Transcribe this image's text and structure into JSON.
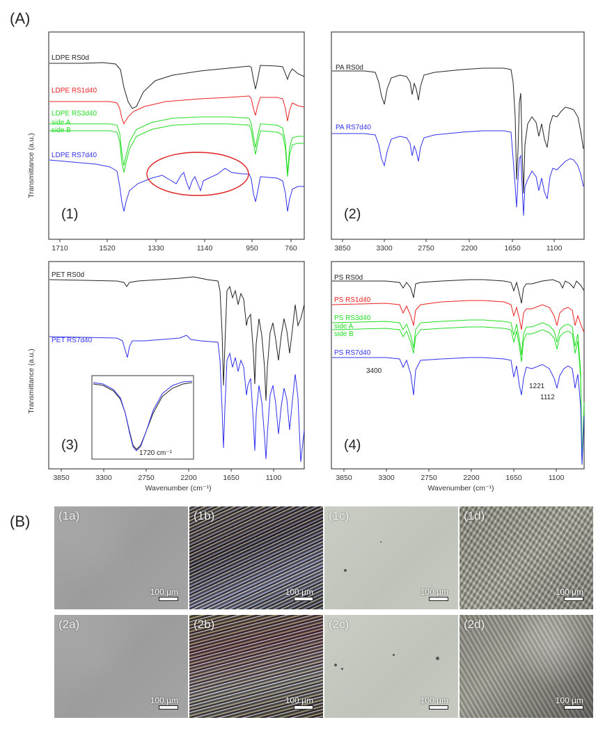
{
  "labels": {
    "A": "(A)",
    "B": "(B)"
  },
  "colors": {
    "black": "#222222",
    "red": "#ee2020",
    "green": "#22dd22",
    "blue": "#3030ee",
    "ellipse": "#e02020"
  },
  "chart_data": [
    {
      "type": "line",
      "panel": "(1)",
      "xlabel": "",
      "ylabel": "Transmittance (a.u.)",
      "xticks": [
        "1710",
        "1520",
        "1330",
        "1140",
        "950",
        "760"
      ],
      "series": [
        {
          "name": "LDPE RS0d",
          "color": "#222222"
        },
        {
          "name": "LDPE RS1d40",
          "color": "#ee2020"
        },
        {
          "name": "LDPE RS3d40",
          "color": "#22dd22",
          "sides": [
            "side A",
            "side B"
          ]
        },
        {
          "name": "LDPE RS7d40",
          "color": "#3030ee"
        }
      ],
      "annotation": "ellipse highlighting 1330–1000 region"
    },
    {
      "type": "line",
      "panel": "(2)",
      "xlabel": "",
      "ylabel": "",
      "xticks": [
        "3850",
        "3300",
        "2750",
        "2200",
        "1650",
        "1100"
      ],
      "series": [
        {
          "name": "PA RS0d",
          "color": "#222222"
        },
        {
          "name": "PA RS7d40",
          "color": "#3030ee"
        }
      ]
    },
    {
      "type": "line",
      "panel": "(3)",
      "xlabel": "Wavenumber (cm⁻¹)",
      "ylabel": "Transmittance (a.u.)",
      "xticks": [
        "3850",
        "3300",
        "2750",
        "2200",
        "1650",
        "1100"
      ],
      "series": [
        {
          "name": "PET RS0d",
          "color": "#222222"
        },
        {
          "name": "PET RS7d40",
          "color": "#3030ee"
        }
      ],
      "inset_label": "1720 cm⁻¹"
    },
    {
      "type": "line",
      "panel": "(4)",
      "xlabel": "Wavenumber (cm⁻¹)",
      "ylabel": "",
      "xticks": [
        "3850",
        "3300",
        "2750",
        "2200",
        "1650",
        "1100"
      ],
      "series": [
        {
          "name": "PS RS0d",
          "color": "#222222"
        },
        {
          "name": "PS RS1d40",
          "color": "#ee2020"
        },
        {
          "name": "PS RS3d40",
          "color": "#22dd22",
          "sides": [
            "side A",
            "side B"
          ]
        },
        {
          "name": "PS RS7d40",
          "color": "#3030ee"
        }
      ],
      "annotations": [
        "3400",
        "1221",
        "1112"
      ]
    }
  ],
  "micrographs": [
    {
      "tag": "(1a)",
      "scale": "100 µm"
    },
    {
      "tag": "(1b)",
      "scale": "100 µm"
    },
    {
      "tag": "(1c)",
      "scale": "100 µm"
    },
    {
      "tag": "(1d)",
      "scale": "100 µm"
    },
    {
      "tag": "(2a)",
      "scale": "100 µm"
    },
    {
      "tag": "(2b)",
      "scale": "100 µm"
    },
    {
      "tag": "(2c)",
      "scale": "100 µm"
    },
    {
      "tag": "(2d)",
      "scale": "100 µm"
    }
  ]
}
